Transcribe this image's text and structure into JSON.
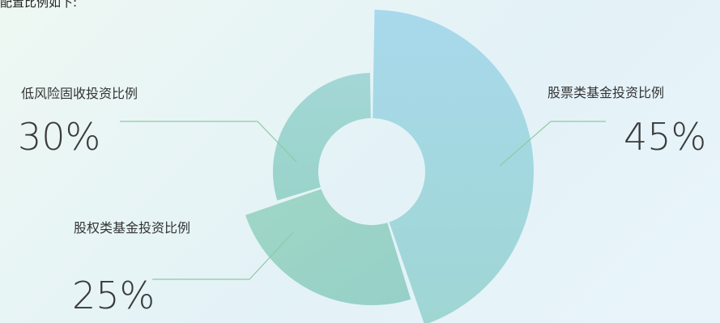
{
  "intro_text": "配置比例如下:",
  "chart_data": {
    "type": "pie",
    "style": "rose-donut",
    "title": "",
    "slices": [
      {
        "label": "股票类基金投资比例",
        "value": 45,
        "value_text": "45%",
        "color": "#a7d9ea"
      },
      {
        "label": "股权类基金投资比例",
        "value": 25,
        "value_text": "25%",
        "color": "#9ad3c8"
      },
      {
        "label": "低风险固收投资比例",
        "value": 30,
        "value_text": "30%",
        "color": "#a1d7d1"
      }
    ],
    "leader_line_color": "#8fc9a4"
  }
}
